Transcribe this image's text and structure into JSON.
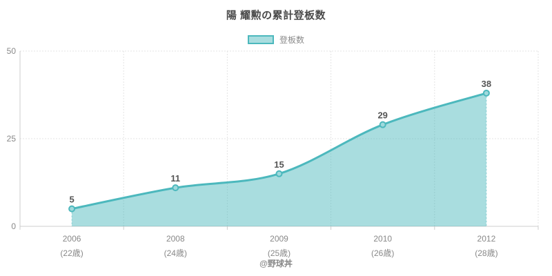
{
  "title": "陽 耀勲の累計登板数",
  "legend": {
    "label": "登板数"
  },
  "footer": {
    "credit": "@野球丼"
  },
  "colors": {
    "line": "#4cb8bd",
    "fill": "rgba(76,184,189,0.48)",
    "marker_fill": "#9fd9dc",
    "grid": "#e3e3e3",
    "axis": "#cccccc",
    "tick_text": "#888888",
    "value_label": "#555555",
    "title_text": "#4a4a4a",
    "edge_dash": "rgba(76,184,189,0.55)"
  },
  "chart_data": {
    "type": "area",
    "title": "陽 耀勲の累計登板数",
    "legend": [
      "登板数"
    ],
    "legend_position": "top",
    "categories": [
      "2006",
      "2008",
      "2009",
      "2010",
      "2012"
    ],
    "category_sublabels": [
      "(22歳)",
      "(24歳)",
      "(25歳)",
      "(26歳)",
      "(28歳)"
    ],
    "series": [
      {
        "name": "登板数",
        "values": [
          5,
          11,
          15,
          29,
          38
        ]
      }
    ],
    "xlabel": "",
    "ylabel": "",
    "ylim": [
      0,
      50
    ],
    "yticks": [
      0,
      25,
      50
    ],
    "grid": true,
    "smooth": true,
    "annotation": "@野球丼"
  }
}
